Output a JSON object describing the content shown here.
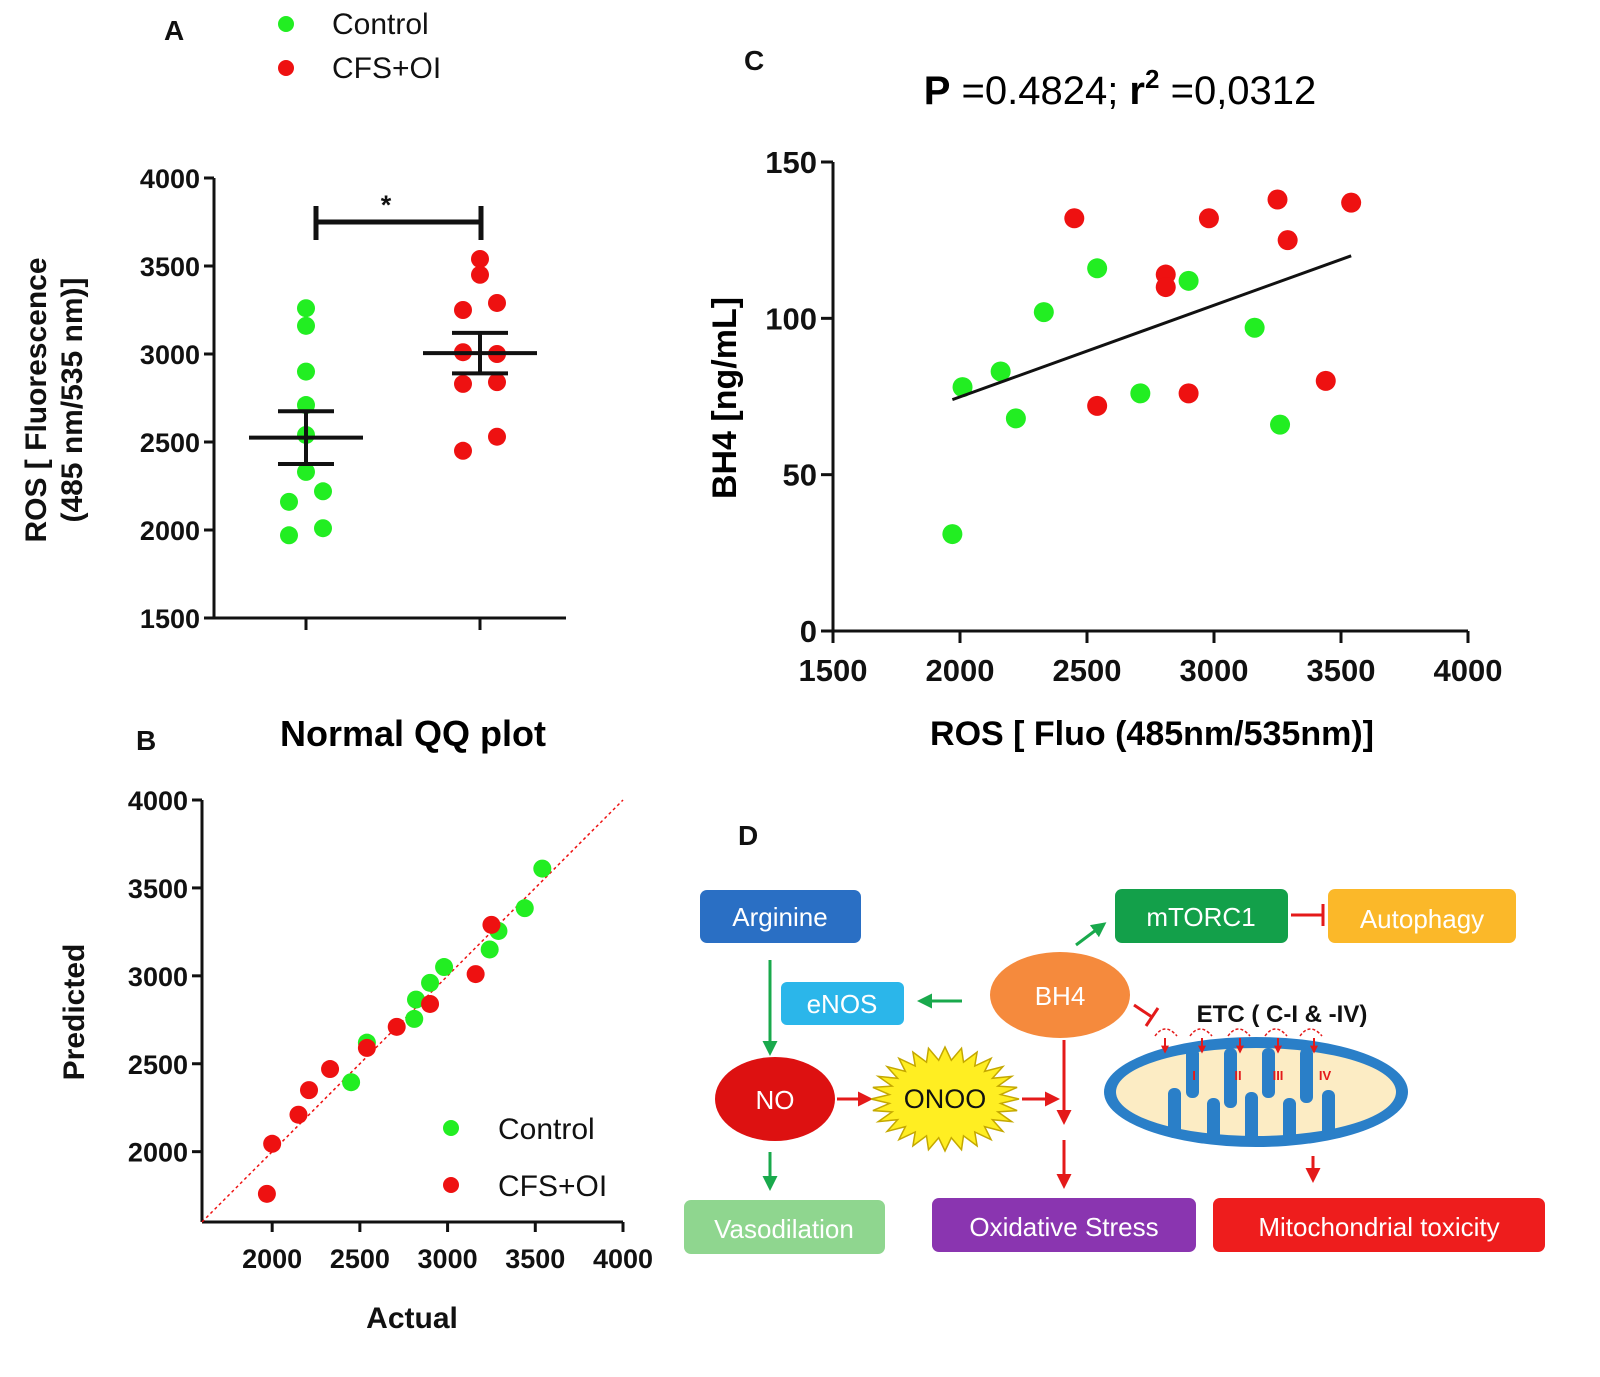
{
  "colors": {
    "control": "#22ee22",
    "cfs": "#ee1111",
    "axis": "#111111",
    "arginine": "#2a6fc4",
    "enos": "#2bb6ea",
    "no": "#dd1111",
    "onoo": "#ffee22",
    "bh4": "#f58a3d",
    "mtorc1": "#13a04a",
    "autophagy": "#fbb829",
    "vasodilation": "#8fd68f",
    "oxidative": "#8a35b0",
    "mito_toxicity": "#ee1d1d",
    "mito_outer": "#2a7fc8",
    "mito_inner": "#fcecc4",
    "green_arrow": "#19a94c",
    "red_arrow": "#e41a1a"
  },
  "chart_data": [
    {
      "panel": "A",
      "type": "scatter",
      "title": "",
      "ylabel_line1": "ROS [ Fluorescence",
      "ylabel_line2": "(485 nm/535 nm)]",
      "xlabel": "",
      "ylim": [
        1500,
        4000
      ],
      "yticks": [
        "1500",
        "2000",
        "2500",
        "3000",
        "3500",
        "4000"
      ],
      "significance": "*",
      "legend": [
        "Control",
        "CFS+OI"
      ],
      "series": [
        {
          "name": "Control",
          "group_index": 0,
          "points": [
            {
              "offset": 0.0,
              "y": 3260
            },
            {
              "offset": 0.0,
              "y": 3160
            },
            {
              "offset": 0.0,
              "y": 2900
            },
            {
              "offset": 0.0,
              "y": 2710
            },
            {
              "offset": 0.0,
              "y": 2540
            },
            {
              "offset": 0.0,
              "y": 2330
            },
            {
              "offset": -0.17,
              "y": 2160
            },
            {
              "offset": 0.17,
              "y": 2220
            },
            {
              "offset": -0.17,
              "y": 1970
            },
            {
              "offset": 0.17,
              "y": 2010
            }
          ],
          "mean": 2525,
          "sem_low": 2375,
          "sem_high": 2675
        },
        {
          "name": "CFS+OI",
          "group_index": 1,
          "points": [
            {
              "offset": 0.0,
              "y": 3540
            },
            {
              "offset": 0.0,
              "y": 3450
            },
            {
              "offset": -0.17,
              "y": 3250
            },
            {
              "offset": 0.17,
              "y": 3290
            },
            {
              "offset": -0.17,
              "y": 3010
            },
            {
              "offset": 0.17,
              "y": 3000
            },
            {
              "offset": -0.17,
              "y": 2830
            },
            {
              "offset": 0.17,
              "y": 2840
            },
            {
              "offset": 0.17,
              "y": 2530
            },
            {
              "offset": -0.17,
              "y": 2450
            }
          ],
          "mean": 3005,
          "sem_low": 2890,
          "sem_high": 3120
        }
      ]
    },
    {
      "panel": "B",
      "type": "scatter",
      "title": "Normal QQ plot",
      "xlabel": "Actual",
      "ylabel": "Predicted",
      "xlim": [
        1600,
        4000
      ],
      "ylim": [
        1600,
        4000
      ],
      "xticks": [
        "2000",
        "2500",
        "3000",
        "3500",
        "4000"
      ],
      "yticks": [
        "2000",
        "2500",
        "3000",
        "3500",
        "4000"
      ],
      "reference_line": "y = x",
      "legend": [
        "Control",
        "CFS+OI"
      ],
      "series": [
        {
          "name": "Control",
          "points": [
            [
              2540,
              2620
            ],
            [
              2450,
              2395
            ],
            [
              2810,
              2755
            ],
            [
              2820,
              2865
            ],
            [
              2900,
              2960
            ],
            [
              2980,
              3050
            ],
            [
              3240,
              3150
            ],
            [
              3290,
              3255
            ],
            [
              3440,
              3385
            ],
            [
              3540,
              3610
            ]
          ]
        },
        {
          "name": "CFS+OI",
          "points": [
            [
              1970,
              1760
            ],
            [
              2000,
              2045
            ],
            [
              2150,
              2210
            ],
            [
              2210,
              2350
            ],
            [
              2330,
              2470
            ],
            [
              2540,
              2590
            ],
            [
              2710,
              2710
            ],
            [
              2900,
              2840
            ],
            [
              3160,
              3010
            ],
            [
              3250,
              3290
            ]
          ]
        }
      ]
    },
    {
      "panel": "C",
      "type": "scatter",
      "title_p_label": "P",
      "title_p_value": " =0.4824; ",
      "title_r_label": "r",
      "title_r_sup": "2",
      "title_r_value": " =0,0312",
      "xlabel": "ROS [ Fluo (485nm/535nm)]",
      "ylabel": "BH4 [ng/mL]",
      "xlim": [
        1500,
        4000
      ],
      "ylim": [
        0,
        150
      ],
      "xticks": [
        "1500",
        "2000",
        "2500",
        "3000",
        "3500",
        "4000"
      ],
      "yticks": [
        "0",
        "50",
        "100",
        "150"
      ],
      "regression": [
        [
          1970,
          74
        ],
        [
          3540,
          120
        ]
      ],
      "series": [
        {
          "name": "Control",
          "points": [
            [
              1970,
              31
            ],
            [
              2010,
              78
            ],
            [
              2160,
              83
            ],
            [
              2220,
              68
            ],
            [
              2330,
              102
            ],
            [
              2540,
              116
            ],
            [
              2710,
              76
            ],
            [
              2900,
              112
            ],
            [
              3160,
              97
            ],
            [
              3260,
              66
            ]
          ]
        },
        {
          "name": "CFS+OI",
          "points": [
            [
              2450,
              132
            ],
            [
              2540,
              72
            ],
            [
              2810,
              114
            ],
            [
              2810,
              110
            ],
            [
              2900,
              76
            ],
            [
              2980,
              132
            ],
            [
              3250,
              138
            ],
            [
              3290,
              125
            ],
            [
              3440,
              80
            ],
            [
              3540,
              137
            ]
          ]
        }
      ]
    }
  ],
  "panels": {
    "a": "A",
    "b": "B",
    "c": "C",
    "d": "D"
  },
  "diagram": {
    "arginine": "Arginine",
    "enos": "eNOS",
    "no": "NO",
    "onoo": "ONOO",
    "bh4": "BH4",
    "mtorc1": "mTORC1",
    "autophagy": "Autophagy",
    "etc": "ETC ( C-I & -IV)",
    "complexes": [
      "I",
      "II",
      "III",
      "IV"
    ],
    "vasodilation": "Vasodilation",
    "oxidative": "Oxidative Stress",
    "mito_toxicity": "Mitochondrial toxicity"
  }
}
